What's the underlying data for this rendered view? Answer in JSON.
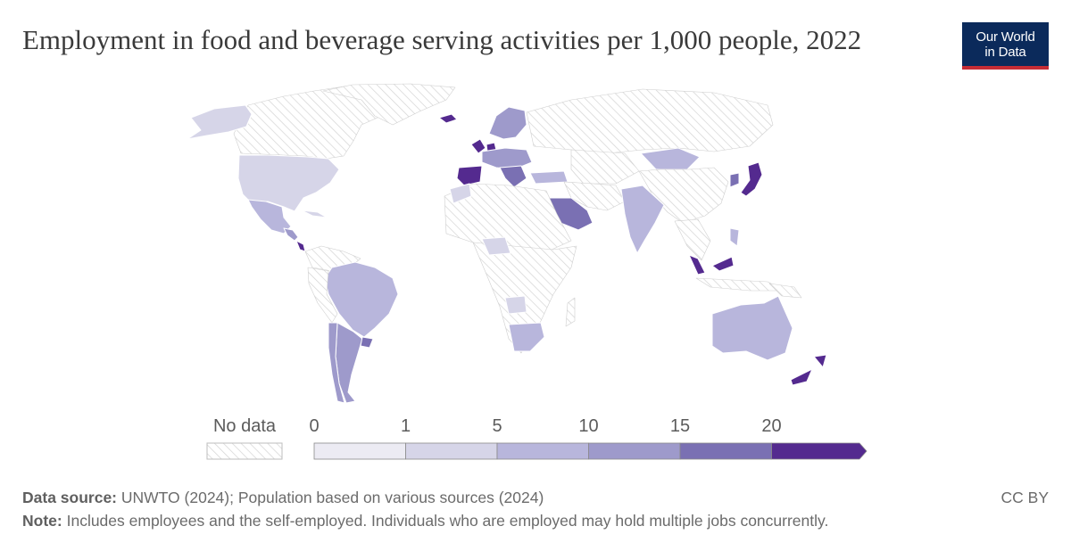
{
  "header": {
    "title": "Employment in food and beverage serving activities per 1,000 people, 2022",
    "logo_line1": "Our World",
    "logo_line2": "in Data"
  },
  "legend": {
    "no_data_label": "No data",
    "bins": [
      "0",
      "1",
      "5",
      "10",
      "15",
      "20"
    ],
    "colors": [
      "#ecebf3",
      "#d6d5e8",
      "#b8b6dc",
      "#9e9acb",
      "#7a70b3",
      "#542a8f"
    ],
    "no_data_hatch": "#d4d4d4"
  },
  "colors": {
    "title": "#3a3a3a",
    "logo_bg": "#0b2a5b",
    "logo_bar": "#c62c35",
    "text_muted": "#6b6b6b",
    "country_border": "#ffffff"
  },
  "map": {
    "projection": "world, Robinson-like",
    "values_band": [
      {
        "region": "United States",
        "band": "1-5"
      },
      {
        "region": "Canada",
        "band": "no data"
      },
      {
        "region": "Alaska",
        "band": "1-5"
      },
      {
        "region": "Mexico",
        "band": "5-10"
      },
      {
        "region": "Costa Rica",
        "band": "20+"
      },
      {
        "region": "Brazil",
        "band": "5-10"
      },
      {
        "region": "Argentina",
        "band": "10-15"
      },
      {
        "region": "Chile",
        "band": "10-15"
      },
      {
        "region": "Spain",
        "band": "20+"
      },
      {
        "region": "Netherlands",
        "band": "20+"
      },
      {
        "region": "Ireland",
        "band": "20+"
      },
      {
        "region": "Saudi Arabia",
        "band": "15-20"
      },
      {
        "region": "India",
        "band": "5-10"
      },
      {
        "region": "Mongolia",
        "band": "5-10"
      },
      {
        "region": "Japan",
        "band": "20+"
      },
      {
        "region": "Malaysia",
        "band": "20+"
      },
      {
        "region": "Australia",
        "band": "5-10"
      },
      {
        "region": "New Zealand",
        "band": "20+"
      },
      {
        "region": "South Africa",
        "band": "5-10"
      },
      {
        "region": "Russia",
        "band": "no data"
      },
      {
        "region": "China",
        "band": "no data"
      }
    ]
  },
  "footer": {
    "source_label": "Data source:",
    "source_text": "UNWTO (2024); Population based on various sources (2024)",
    "note_label": "Note:",
    "note_text": "Includes employees and the self-employed. Individuals who are employed may hold multiple jobs concurrently.",
    "license": "CC BY"
  }
}
